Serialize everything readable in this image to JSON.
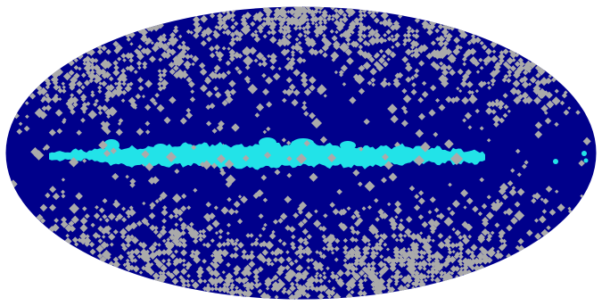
{
  "map": {
    "projection": "mollweide",
    "colors": {
      "background": "#ffffff",
      "unmasked": "#00008b",
      "masked": "#aaaaaa",
      "galactic_plane": "#22e3e8"
    }
  }
}
